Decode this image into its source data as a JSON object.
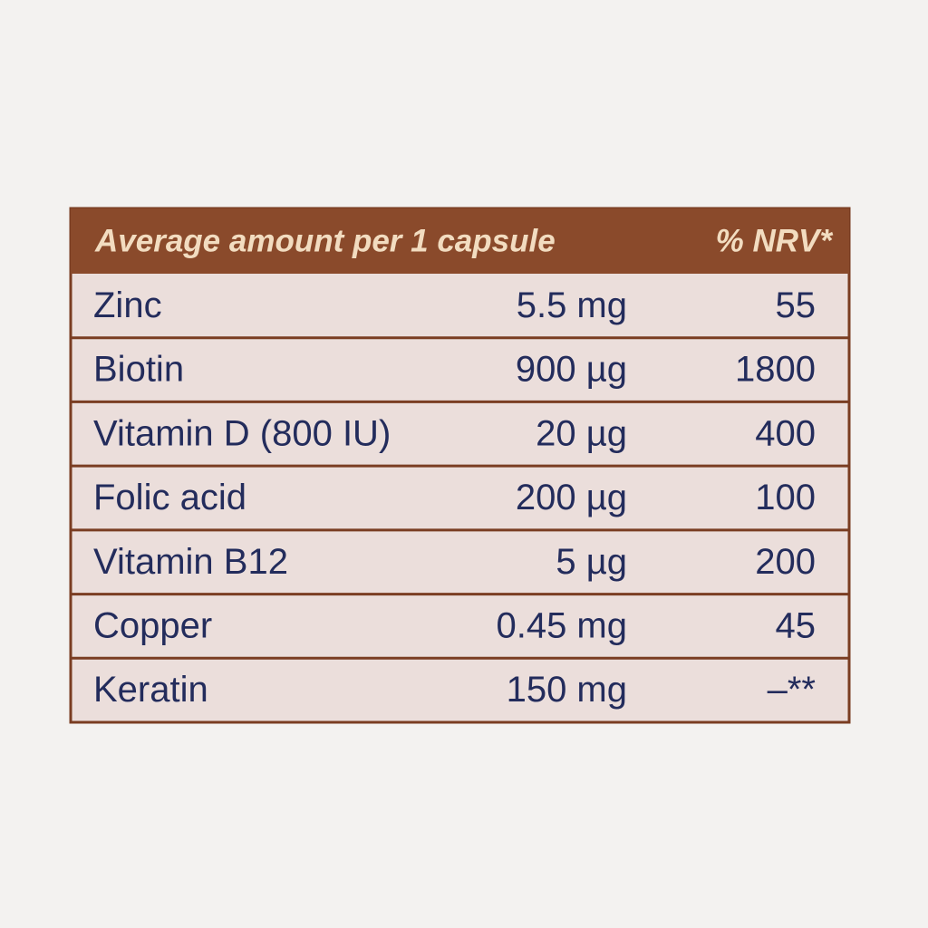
{
  "header": {
    "title": "Average amount per 1 capsule",
    "nrv": "% NRV*"
  },
  "table": {
    "rows": [
      [
        "Zinc",
        "5.5 mg",
        "55"
      ],
      [
        "Biotin",
        "900 µg",
        "1800"
      ],
      [
        "Vitamin D (800 IU)",
        "20 µg",
        "400"
      ],
      [
        "Folic acid",
        "200 µg",
        "100"
      ],
      [
        "Vitamin B12",
        "5 µg",
        "200"
      ],
      [
        "Copper",
        "0.45 mg",
        "45"
      ],
      [
        "Keratin",
        "150 mg",
        "–**"
      ]
    ]
  }
}
